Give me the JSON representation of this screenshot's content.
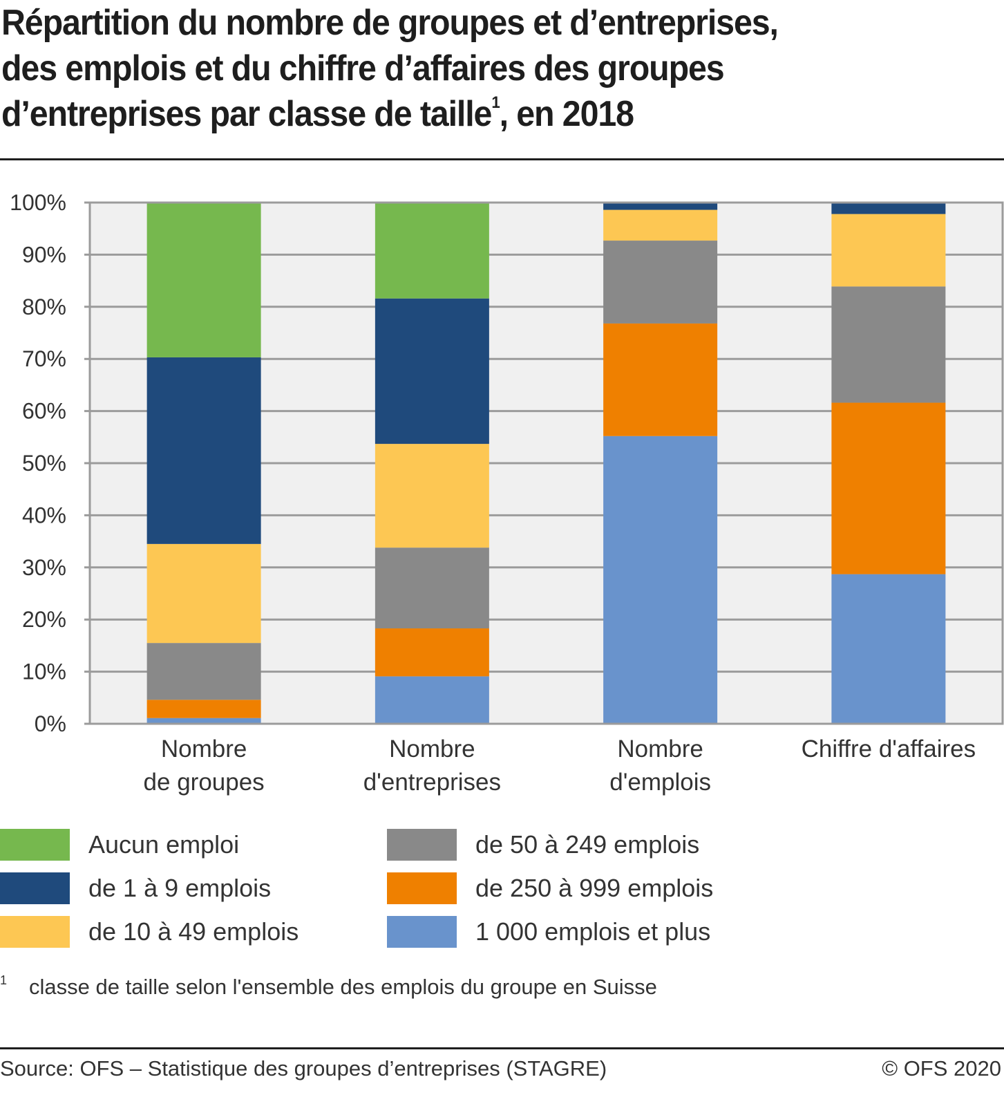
{
  "header": {
    "title_line1": "Répartition du nombre de groupes et d’entreprises,",
    "title_line2": "des emplois et du chiffre d’affaires des groupes",
    "title_line3_main": "d’entreprises par classe de taille",
    "title_footnote_mark": "1",
    "title_line3_end": ", en 2018"
  },
  "chart_data": {
    "type": "bar",
    "stacked": true,
    "percent": true,
    "title": "Répartition du nombre de groupes et d’entreprises, des emplois et du chiffre d’affaires des groupes d’entreprises par classe de taille, en 2018",
    "xlabel": "",
    "ylabel": "",
    "ylim": [
      0,
      100
    ],
    "yticks": [
      "0%",
      "10%",
      "20%",
      "30%",
      "40%",
      "50%",
      "60%",
      "70%",
      "80%",
      "90%",
      "100%"
    ],
    "grid": true,
    "legend_position": "bottom",
    "categories": [
      [
        "Nombre",
        "de groupes"
      ],
      [
        "Nombre",
        "d'entreprises"
      ],
      [
        "Nombre",
        "d'emplois"
      ],
      [
        "Chiffre d'affaires"
      ]
    ],
    "series": [
      {
        "name": "1000 emplois et plus",
        "color": "#6993cc",
        "values": [
          1.1,
          9.1,
          55.2,
          28.7
        ]
      },
      {
        "name": "de 250 à 999 emplois",
        "color": "#ef8000",
        "values": [
          3.5,
          9.2,
          21.6,
          32.9
        ]
      },
      {
        "name": "de 50 à 249 emplois",
        "color": "#898989",
        "values": [
          10.9,
          15.5,
          15.9,
          22.3
        ]
      },
      {
        "name": "de 10 à 49 emplois",
        "color": "#fdc753",
        "values": [
          19.0,
          19.9,
          5.9,
          13.9
        ]
      },
      {
        "name": "de 1 à 9 emplois",
        "color": "#1f4a7c",
        "values": [
          35.8,
          27.9,
          1.4,
          2.2
        ]
      },
      {
        "name": "Aucun emploi",
        "color": "#76b84e",
        "values": [
          29.7,
          18.4,
          0.0,
          0.0
        ]
      }
    ]
  },
  "legend": {
    "items": [
      {
        "label": "Aucun emploi",
        "color": "#76b84e"
      },
      {
        "label": "de 1 à 9 emplois",
        "color": "#1f4a7c"
      },
      {
        "label": "de 10 à 49 emplois",
        "color": "#fdc753"
      },
      {
        "label": "de 50 à 249 emplois",
        "color": "#898989"
      },
      {
        "label": "de 250 à 999 emplois",
        "color": "#ef8000"
      },
      {
        "label": "1 000 emplois et plus",
        "color": "#6993cc"
      }
    ]
  },
  "footnote": {
    "mark": "1",
    "text": "classe de taille selon l'ensemble des emplois du groupe en Suisse"
  },
  "footer": {
    "source": "Source: OFS – Statistique des groupes d’entreprises (STAGRE)",
    "copyright": "© OFS 2020"
  },
  "colors": {
    "plot_background": "#f0f0f0",
    "gridline": "#9b9b9b",
    "rule": "#1e1e1e"
  }
}
